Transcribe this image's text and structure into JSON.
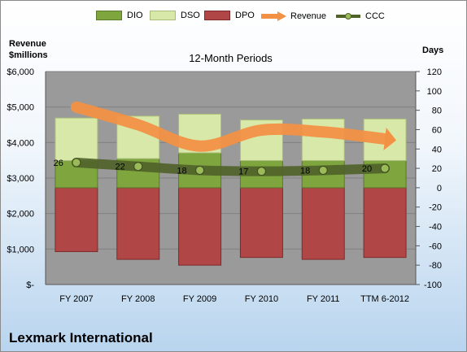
{
  "chart_data": {
    "type": "bar",
    "title": "12-Month Periods",
    "categories": [
      "FY 2007",
      "FY 2008",
      "FY 2009",
      "FY 2010",
      "FY 2011",
      "TTM 6-2012"
    ],
    "y_left_label": "Revenue\n$millions",
    "y_right_label": "Days",
    "y_left_ticks": [
      "$-",
      "$1,000",
      "$2,000",
      "$3,000",
      "$4,000",
      "$5,000",
      "$6,000"
    ],
    "y_left_lim": [
      0,
      6000
    ],
    "y_right_lim": [
      -100,
      120
    ],
    "y_right_ticks": [
      -100,
      -80,
      -60,
      -40,
      -20,
      0,
      20,
      40,
      60,
      80,
      100,
      120
    ],
    "grid": true,
    "legend_position": "top",
    "series": [
      {
        "name": "DIO",
        "kind": "bar-up",
        "axis": "right",
        "color": "#7fa53e",
        "values": [
          28,
          30,
          36,
          28,
          28,
          28
        ]
      },
      {
        "name": "DSO",
        "kind": "bar-up",
        "axis": "right",
        "color": "#d7e8a8",
        "values": [
          44,
          44,
          40,
          42,
          43,
          43
        ]
      },
      {
        "name": "DPO",
        "kind": "bar-down",
        "axis": "right",
        "color": "#b04645",
        "values": [
          66,
          74,
          80,
          72,
          74,
          72
        ]
      },
      {
        "name": "Revenue",
        "kind": "line",
        "axis": "left",
        "color": "#f29144",
        "values": [
          5000,
          4500,
          3900,
          4350,
          4300,
          4100
        ]
      },
      {
        "name": "CCC",
        "kind": "line",
        "axis": "right",
        "color": "#4f6228",
        "values": [
          26,
          22,
          18,
          17,
          18,
          20
        ],
        "labels": [
          "26",
          "22",
          "18",
          "17",
          "18",
          "20"
        ]
      }
    ],
    "company": "Lexmark International"
  }
}
